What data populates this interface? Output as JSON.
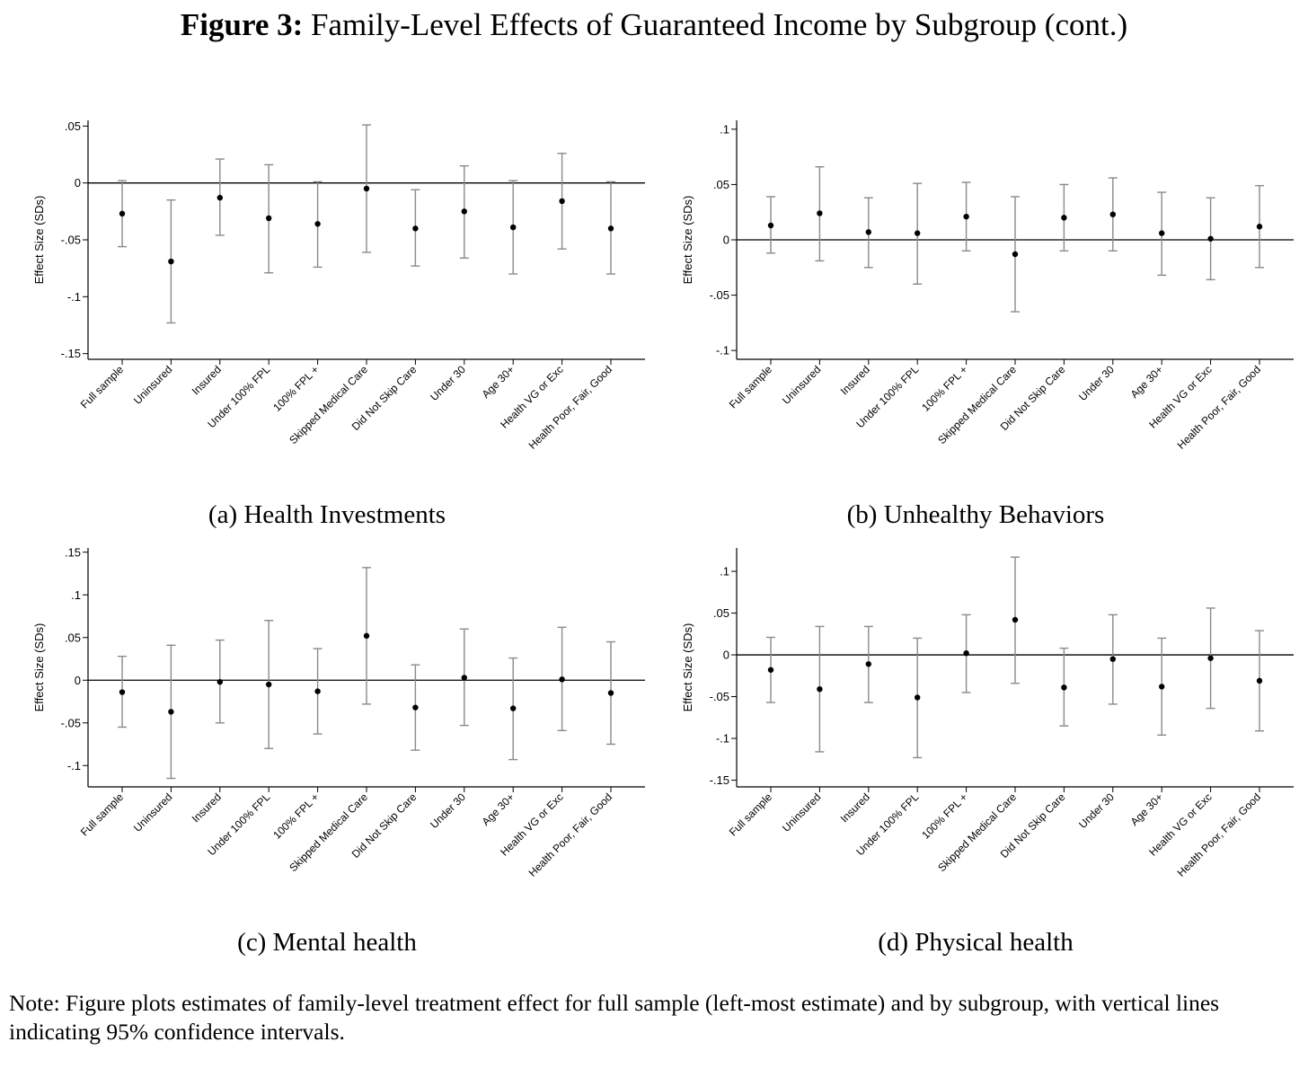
{
  "figure": {
    "label": "Figure 3:",
    "title": "Family-Level Effects of Guaranteed Income by Subgroup (cont.)",
    "note": "Note: Figure plots estimates of family-level treatment effect for full sample (left-most estimate) and by subgroup, with vertical lines indicating 95% confidence intervals."
  },
  "colors": {
    "point": "#000000",
    "ci": "#8a8a8a",
    "zero_line": "#000000",
    "axis": "#000000"
  },
  "chart_data": [
    {
      "type": "scatter",
      "caption": "(a) Health Investments",
      "ylabel": "Effect Size (SDs)",
      "ylim": [
        -0.155,
        0.055
      ],
      "yticks": [
        0.05,
        0,
        -0.05,
        -0.1,
        -0.15
      ],
      "ytick_labels": [
        ".05",
        "0",
        "-.05",
        "-.1",
        "-.15"
      ],
      "reference_line": 0,
      "categories": [
        "Full sample",
        "Uninsured",
        "Insured",
        "Under 100% FPL",
        "100% FPL +",
        "Skipped Medical Care",
        "Did Not Skip Care",
        "Under 30",
        "Age 30+",
        "Health VG or Exc",
        "Health Poor, Fair, Good"
      ],
      "estimate": [
        -0.027,
        -0.069,
        -0.013,
        -0.031,
        -0.036,
        -0.005,
        -0.04,
        -0.025,
        -0.039,
        -0.016,
        -0.04
      ],
      "ci_low": [
        -0.056,
        -0.123,
        -0.046,
        -0.079,
        -0.074,
        -0.061,
        -0.073,
        -0.066,
        -0.08,
        -0.058,
        -0.08
      ],
      "ci_high": [
        0.002,
        -0.015,
        0.021,
        0.016,
        0.001,
        0.051,
        -0.006,
        0.015,
        0.002,
        0.026,
        0.001
      ],
      "grid": false,
      "legend": "none"
    },
    {
      "type": "scatter",
      "caption": "(b) Unhealthy Behaviors",
      "ylabel": "Effect Size (SDs)",
      "ylim": [
        -0.108,
        0.108
      ],
      "yticks": [
        0.1,
        0.05,
        0,
        -0.05,
        -0.1
      ],
      "ytick_labels": [
        ".1",
        ".05",
        "0",
        "-.05",
        "-.1"
      ],
      "reference_line": 0,
      "categories": [
        "Full sample",
        "Uninsured",
        "Insured",
        "Under 100% FPL",
        "100% FPL +",
        "Skipped Medical Care",
        "Did Not Skip Care",
        "Under 30",
        "Age 30+",
        "Health VG or Exc",
        "Health Poor, Fair, Good"
      ],
      "estimate": [
        0.013,
        0.024,
        0.007,
        0.006,
        0.021,
        -0.013,
        0.02,
        0.023,
        0.006,
        0.001,
        0.012
      ],
      "ci_low": [
        -0.012,
        -0.019,
        -0.025,
        -0.04,
        -0.01,
        -0.065,
        -0.01,
        -0.01,
        -0.032,
        -0.036,
        -0.025
      ],
      "ci_high": [
        0.039,
        0.066,
        0.038,
        0.051,
        0.052,
        0.039,
        0.05,
        0.056,
        0.043,
        0.038,
        0.049
      ],
      "grid": false,
      "legend": "none"
    },
    {
      "type": "scatter",
      "caption": "(c) Mental health",
      "ylabel": "Effect Size (SDs)",
      "ylim": [
        -0.125,
        0.155
      ],
      "yticks": [
        0.15,
        0.1,
        0.05,
        0,
        -0.05,
        -0.1
      ],
      "ytick_labels": [
        ".15",
        ".1",
        ".05",
        "0",
        "-.05",
        "-.1"
      ],
      "reference_line": 0,
      "categories": [
        "Full sample",
        "Uninsured",
        "Insured",
        "Under 100% FPL",
        "100% FPL +",
        "Skipped Medical Care",
        "Did Not Skip Care",
        "Under 30",
        "Age 30+",
        "Health VG or Exc",
        "Health Poor, Fair, Good"
      ],
      "estimate": [
        -0.014,
        -0.037,
        -0.002,
        -0.005,
        -0.013,
        0.052,
        -0.032,
        0.003,
        -0.033,
        0.001,
        -0.015
      ],
      "ci_low": [
        -0.055,
        -0.115,
        -0.05,
        -0.08,
        -0.063,
        -0.028,
        -0.082,
        -0.053,
        -0.093,
        -0.059,
        -0.075
      ],
      "ci_high": [
        0.028,
        0.041,
        0.047,
        0.07,
        0.037,
        0.132,
        0.018,
        0.06,
        0.026,
        0.062,
        0.045
      ],
      "grid": false,
      "legend": "none"
    },
    {
      "type": "scatter",
      "caption": "(d) Physical health",
      "ylabel": "Effect Size (SDs)",
      "ylim": [
        -0.158,
        0.128
      ],
      "yticks": [
        0.1,
        0.05,
        0,
        -0.05,
        -0.1,
        -0.15
      ],
      "ytick_labels": [
        ".1",
        ".05",
        "0",
        "-.05",
        "-.1",
        "-.15"
      ],
      "reference_line": 0,
      "categories": [
        "Full sample",
        "Uninsured",
        "Insured",
        "Under 100% FPL",
        "100% FPL +",
        "Skipped Medical Care",
        "Did Not Skip Care",
        "Under 30",
        "Age 30+",
        "Health VG or Exc",
        "Health Poor, Fair, Good"
      ],
      "estimate": [
        -0.018,
        -0.041,
        -0.011,
        -0.051,
        0.002,
        0.042,
        -0.039,
        -0.005,
        -0.038,
        -0.004,
        -0.031
      ],
      "ci_low": [
        -0.057,
        -0.116,
        -0.057,
        -0.123,
        -0.045,
        -0.034,
        -0.085,
        -0.059,
        -0.096,
        -0.064,
        -0.091
      ],
      "ci_high": [
        0.021,
        0.034,
        0.034,
        0.02,
        0.048,
        0.117,
        0.008,
        0.048,
        0.02,
        0.056,
        0.029
      ],
      "grid": false,
      "legend": "none"
    }
  ]
}
